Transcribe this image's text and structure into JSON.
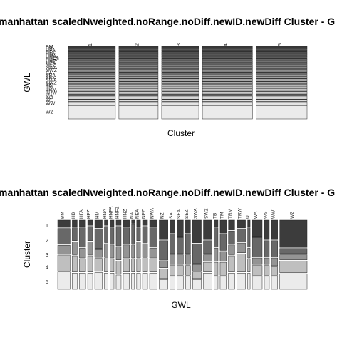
{
  "chart_data": [
    {
      "type": "mosaic",
      "title": "manhattan scaledNweighted.noRange.noDiff.newID.newDiff Cluster - G",
      "xlabel": "Cluster",
      "ylabel": "GWL",
      "clusters": [
        "1",
        "2",
        "3",
        "4",
        "5"
      ],
      "cluster_widths": [
        0.182,
        0.152,
        0.144,
        0.194,
        0.198
      ],
      "gwl_labels": [
        "BM",
        "HB",
        "HFA",
        "HFZ",
        "HM",
        "HNA",
        "HNFA",
        "HNFZ",
        "HNZ",
        "NEA",
        "NEZ",
        "NWA",
        "NWZ",
        "SA",
        "SEA",
        "SEZ",
        "SWA",
        "SWZ",
        "TB",
        "TM",
        "TRM",
        "TRW",
        "U",
        "WA",
        "WS",
        "WW",
        "WZ"
      ],
      "gwl_proportions": [
        0.025,
        0.02,
        0.025,
        0.02,
        0.03,
        0.02,
        0.02,
        0.02,
        0.03,
        0.02,
        0.025,
        0.04,
        0.045,
        0.025,
        0.03,
        0.03,
        0.04,
        0.035,
        0.025,
        0.03,
        0.045,
        0.04,
        0.02,
        0.05,
        0.03,
        0.055,
        0.22
      ]
    },
    {
      "type": "mosaic",
      "title": "manhattan scaledNweighted.noRange.noDiff.newID.newDiff Cluster - G",
      "xlabel": "GWL",
      "ylabel": "Cluster",
      "clusters": [
        "1",
        "2",
        "3",
        "4",
        "5"
      ],
      "gwl_labels": [
        "BM",
        "HB",
        "HFA",
        "HFZ",
        "HM",
        "HNA",
        "HNFA",
        "HNFZ",
        "HNZ",
        "NA",
        "NEA",
        "NEZ",
        "NWA",
        "NZ",
        "SA",
        "SEA",
        "SEZ",
        "SWA",
        "SWZ",
        "TB",
        "TM",
        "TRM",
        "TRW",
        "U",
        "WA",
        "WS",
        "WW",
        "WZ"
      ],
      "gwl_widths": [
        0.05,
        0.02,
        0.025,
        0.02,
        0.03,
        0.015,
        0.015,
        0.02,
        0.025,
        0.012,
        0.015,
        0.02,
        0.03,
        0.035,
        0.02,
        0.025,
        0.02,
        0.035,
        0.035,
        0.015,
        0.025,
        0.025,
        0.035,
        0.01,
        0.04,
        0.02,
        0.025,
        0.11
      ],
      "cluster_proportions": [
        [
          0.1,
          0.22,
          0.12,
          0.22,
          0.24
        ],
        [
          0.1,
          0.2,
          0.2,
          0.25,
          0.25
        ],
        [
          0.1,
          0.3,
          0.15,
          0.2,
          0.25
        ],
        [
          0.08,
          0.22,
          0.2,
          0.25,
          0.25
        ],
        [
          0.12,
          0.3,
          0.12,
          0.2,
          0.26
        ],
        [
          0.08,
          0.25,
          0.2,
          0.22,
          0.25
        ],
        [
          0.1,
          0.25,
          0.2,
          0.2,
          0.25
        ],
        [
          0.08,
          0.3,
          0.2,
          0.2,
          0.22
        ],
        [
          0.1,
          0.25,
          0.2,
          0.2,
          0.25
        ],
        [
          0.05,
          0.3,
          0.2,
          0.2,
          0.25
        ],
        [
          0.1,
          0.2,
          0.25,
          0.2,
          0.25
        ],
        [
          0.08,
          0.25,
          0.2,
          0.22,
          0.25
        ],
        [
          0.1,
          0.3,
          0.15,
          0.2,
          0.25
        ],
        [
          0.3,
          0.3,
          0.1,
          0.15,
          0.15
        ],
        [
          0.2,
          0.3,
          0.15,
          0.15,
          0.2
        ],
        [
          0.25,
          0.25,
          0.15,
          0.15,
          0.2
        ],
        [
          0.2,
          0.3,
          0.15,
          0.15,
          0.2
        ],
        [
          0.35,
          0.3,
          0.1,
          0.1,
          0.15
        ],
        [
          0.3,
          0.2,
          0.1,
          0.15,
          0.25
        ],
        [
          0.1,
          0.3,
          0.2,
          0.2,
          0.2
        ],
        [
          0.2,
          0.25,
          0.15,
          0.2,
          0.2
        ],
        [
          0.15,
          0.2,
          0.15,
          0.25,
          0.25
        ],
        [
          0.12,
          0.2,
          0.15,
          0.28,
          0.25
        ],
        [
          0.1,
          0.3,
          0.15,
          0.2,
          0.25
        ],
        [
          0.25,
          0.3,
          0.1,
          0.15,
          0.2
        ],
        [
          0.3,
          0.25,
          0.1,
          0.15,
          0.2
        ],
        [
          0.3,
          0.25,
          0.12,
          0.13,
          0.2
        ],
        [
          0.42,
          0.08,
          0.08,
          0.18,
          0.24
        ]
      ]
    }
  ]
}
